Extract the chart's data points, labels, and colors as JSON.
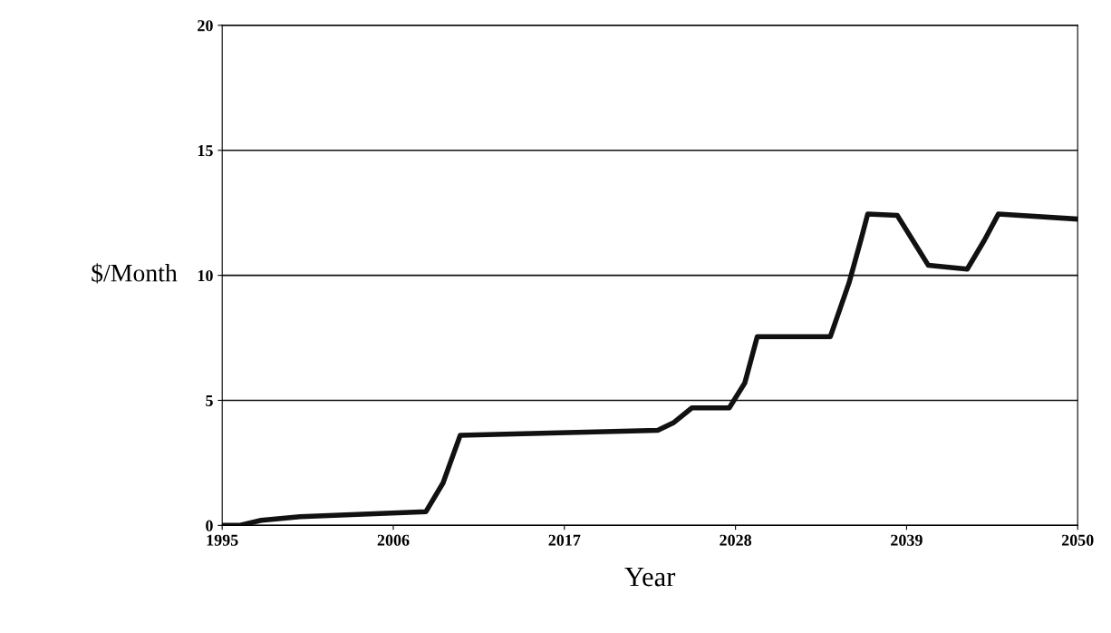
{
  "chart_data": {
    "type": "line",
    "xlabel": "Year",
    "ylabel": "$/Month",
    "x": [
      1995,
      1996.1,
      1997.5,
      2000,
      2008.1,
      2009.2,
      2010.3,
      2023,
      2024,
      2025.2,
      2027.6,
      2028.6,
      2029.4,
      2034.1,
      2035.3,
      2036.1,
      2036.5,
      2038.4,
      2040.4,
      2042.9,
      2044,
      2044.9,
      2050
    ],
    "series": [
      {
        "color": "#111111",
        "values": [
          0,
          0,
          0.2,
          0.35,
          0.55,
          1.7,
          3.6,
          3.8,
          4.1,
          4.7,
          4.7,
          5.7,
          7.55,
          7.55,
          9.7,
          11.5,
          12.45,
          12.4,
          10.4,
          10.25,
          11.4,
          12.45,
          12.25
        ]
      }
    ],
    "xlim": [
      1995,
      2050
    ],
    "xticks": [
      1995,
      2006,
      2017,
      2028,
      2039,
      2050
    ],
    "ylim": [
      0,
      20
    ],
    "yticks": [
      0,
      5,
      10,
      15,
      20
    ],
    "grid": "y",
    "marker": "none",
    "line_style": "solid"
  }
}
